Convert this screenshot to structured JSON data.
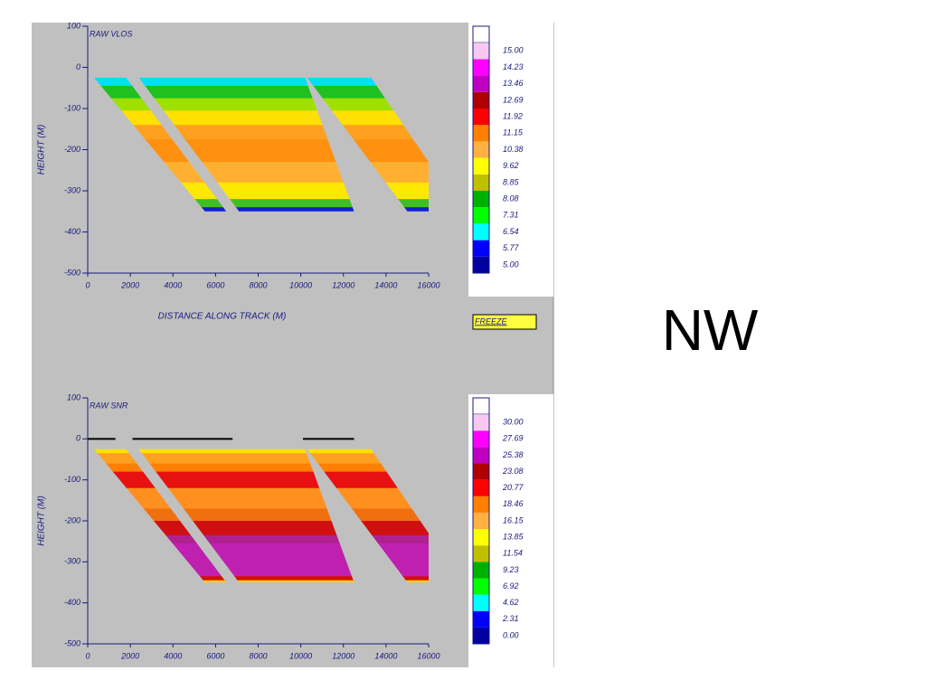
{
  "slide_label": "NW",
  "chart_data": [
    {
      "type": "heatmap",
      "title": "RAW VLOS",
      "xlabel": "DISTANCE ALONG TRACK (M)",
      "ylabel": "HEIGHT (M)",
      "xlim": [
        0,
        16000
      ],
      "xticks": [
        0,
        2000,
        4000,
        6000,
        8000,
        10000,
        12000,
        14000,
        16000
      ],
      "ylim": [
        -500,
        100
      ],
      "yticks": [
        -500,
        -400,
        -300,
        -200,
        -100,
        0,
        100
      ],
      "colorbar": {
        "ticks": [
          {
            "value": 5,
            "label": "5.00"
          },
          {
            "value": 5.77,
            "label": "5.77"
          },
          {
            "value": 6.54,
            "label": "6.54"
          },
          {
            "value": 7.31,
            "label": "7.31"
          },
          {
            "value": 8.08,
            "label": "8.08"
          },
          {
            "value": 8.85,
            "label": "8.85"
          },
          {
            "value": 9.62,
            "label": "9.62"
          },
          {
            "value": 10.38,
            "label": "10.38"
          },
          {
            "value": 11.15,
            "label": "11.15"
          },
          {
            "value": 11.92,
            "label": "11.92"
          },
          {
            "value": 12.69,
            "label": "12.69"
          },
          {
            "value": 13.46,
            "label": "13.46"
          },
          {
            "value": 14.23,
            "label": "14.23"
          },
          {
            "value": 15,
            "label": "15.00"
          }
        ],
        "colors": [
          "#0000a0",
          "#0000ff",
          "#00ffff",
          "#00ff00",
          "#00b000",
          "#c0c000",
          "#ffff00",
          "#ffb040",
          "#ff8000",
          "#ff0000",
          "#b00000",
          "#c000c0",
          "#ff00ff",
          "#f8c8f0"
        ]
      },
      "button": "FREEZE"
    },
    {
      "type": "heatmap",
      "title": "RAW SNR",
      "ylabel": "HEIGHT (M)",
      "xlim": [
        0,
        16000
      ],
      "xticks": [
        0,
        2000,
        4000,
        6000,
        8000,
        10000,
        12000,
        14000,
        16000
      ],
      "ylim": [
        -500,
        100
      ],
      "yticks": [
        -500,
        -400,
        -300,
        -200,
        -100,
        0,
        100
      ],
      "colorbar": {
        "ticks": [
          {
            "value": 0,
            "label": "0.00"
          },
          {
            "value": 2.31,
            "label": "2.31"
          },
          {
            "value": 4.62,
            "label": "4.62"
          },
          {
            "value": 6.92,
            "label": "6.92"
          },
          {
            "value": 9.23,
            "label": "9.23"
          },
          {
            "value": 11.54,
            "label": "11.54"
          },
          {
            "value": 13.85,
            "label": "13.85"
          },
          {
            "value": 16.15,
            "label": "16.15"
          },
          {
            "value": 18.46,
            "label": "18.46"
          },
          {
            "value": 20.77,
            "label": "20.77"
          },
          {
            "value": 23.08,
            "label": "23.08"
          },
          {
            "value": 25.38,
            "label": "25.38"
          },
          {
            "value": 27.69,
            "label": "27.69"
          },
          {
            "value": 30,
            "label": "30.00"
          }
        ],
        "colors": [
          "#0000a0",
          "#0000ff",
          "#00ffff",
          "#00ff00",
          "#00b000",
          "#c0c000",
          "#ffff00",
          "#ffb040",
          "#ff8000",
          "#ff0000",
          "#b00000",
          "#c000c0",
          "#ff00ff",
          "#f8c8f0"
        ]
      }
    }
  ]
}
